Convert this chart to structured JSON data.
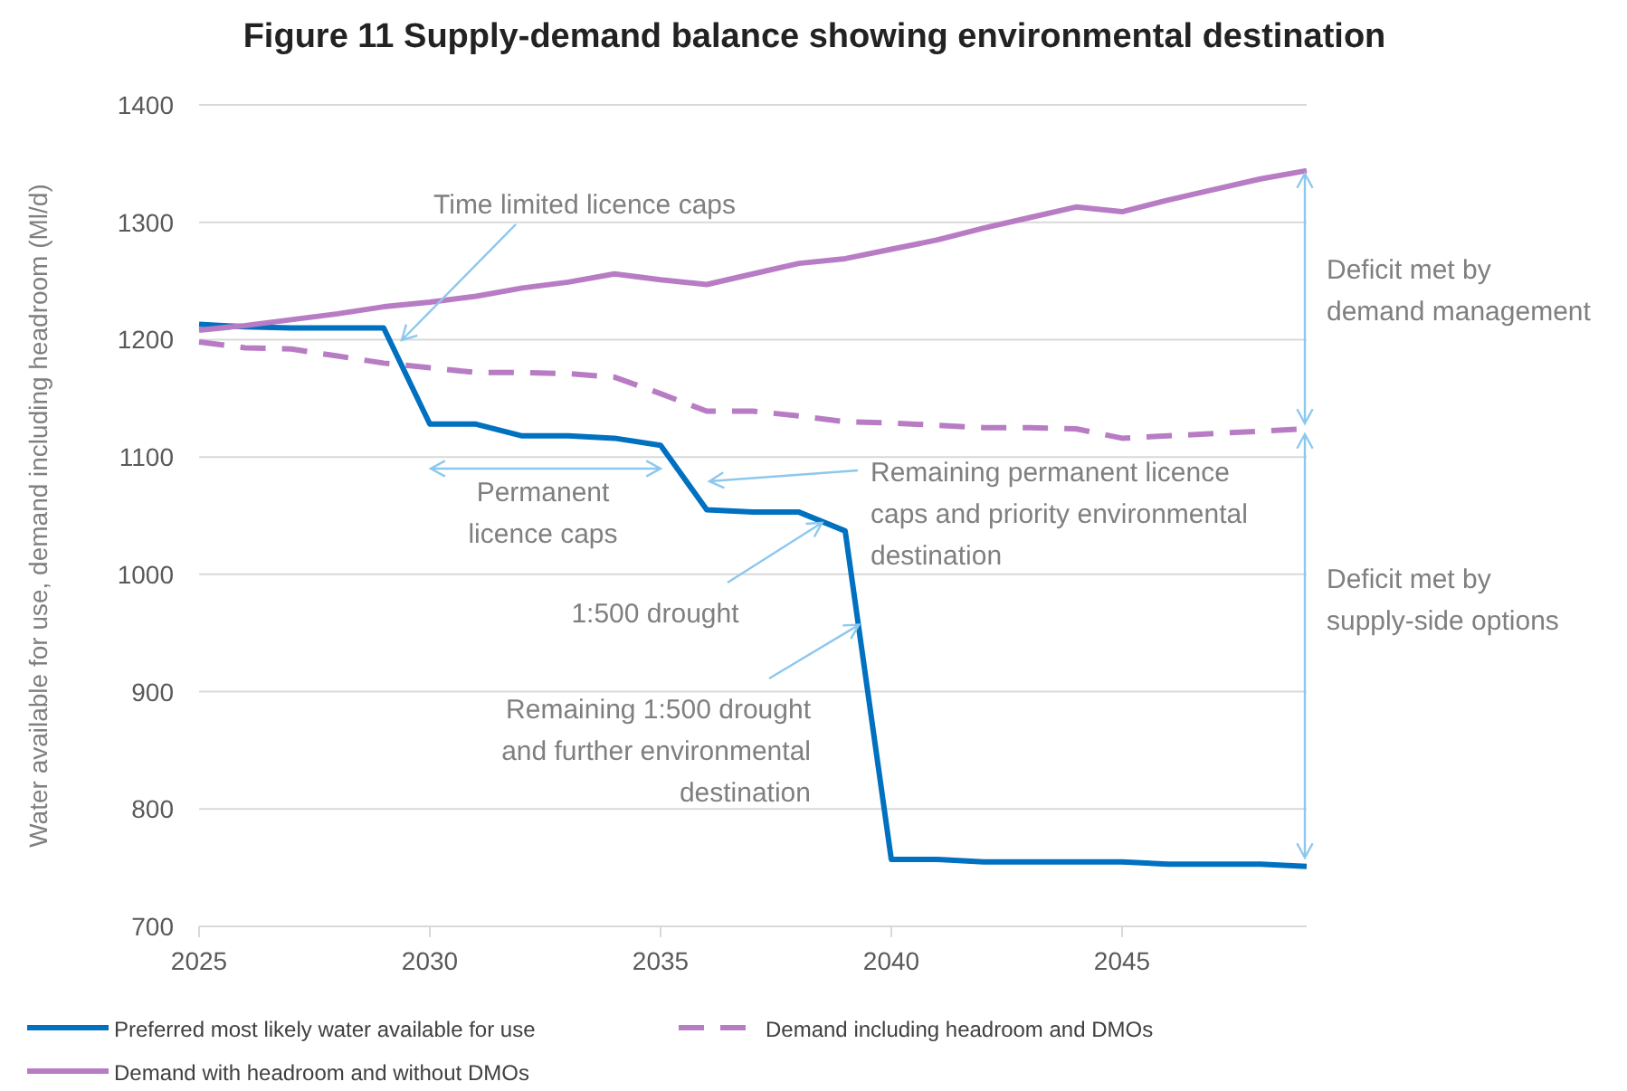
{
  "chart_data": {
    "type": "line",
    "title": "Figure 11 Supply-demand balance showing environmental destination",
    "ylabel": "Water available for use, demand including headroom (Ml/d)",
    "x": [
      2025,
      2026,
      2027,
      2028,
      2029,
      2030,
      2031,
      2032,
      2033,
      2034,
      2035,
      2036,
      2037,
      2038,
      2039,
      2040,
      2041,
      2042,
      2043,
      2044,
      2045,
      2046,
      2047,
      2048,
      2049
    ],
    "xlim": [
      2025,
      2049
    ],
    "xticks": [
      2025,
      2030,
      2035,
      2040,
      2045
    ],
    "ylim": [
      700,
      1400
    ],
    "yticks": [
      700,
      800,
      900,
      1000,
      1100,
      1200,
      1300,
      1400
    ],
    "grid": "y",
    "legend": "bottom",
    "series": [
      {
        "name": "Preferred most likely water available for use",
        "color": "#0070c0",
        "line_style": "solid",
        "values": [
          1213,
          1211,
          1210,
          1210,
          1210,
          1128,
          1128,
          1118,
          1118,
          1116,
          1110,
          1055,
          1053,
          1053,
          1037,
          757,
          757,
          755,
          755,
          755,
          755,
          753,
          753,
          753,
          751
        ]
      },
      {
        "name": "Demand including headroom and DMOs",
        "color": "#b87cc4",
        "line_style": "dashed",
        "values": [
          1198,
          1193,
          1192,
          1186,
          1180,
          1176,
          1172,
          1172,
          1171,
          1168,
          1154,
          1139,
          1139,
          1135,
          1130,
          1129,
          1127,
          1125,
          1125,
          1124,
          1116,
          1118,
          1120,
          1122,
          1124
        ]
      },
      {
        "name": "Demand with headroom and without DMOs",
        "color": "#b87cc4",
        "line_style": "solid",
        "values": [
          1208,
          1212,
          1217,
          1222,
          1228,
          1232,
          1237,
          1244,
          1249,
          1256,
          1251,
          1247,
          1256,
          1265,
          1269,
          1277,
          1285,
          1295,
          1304,
          1313,
          1309,
          1319,
          1328,
          1337,
          1344
        ]
      }
    ],
    "annotations": [
      "Time limited licence caps",
      "Permanent licence caps",
      "Remaining permanent licence caps and priority environmental destination",
      {
        "text": "1:500 drought",
        "x": 2038.5,
        "y": 1044
      },
      {
        "text": "Remaining 1:500 drought and further environmental destination",
        "x": 2039.3,
        "y": 957
      },
      "Deficit met by demand management",
      "Deficit met by supply-side options"
    ]
  }
}
